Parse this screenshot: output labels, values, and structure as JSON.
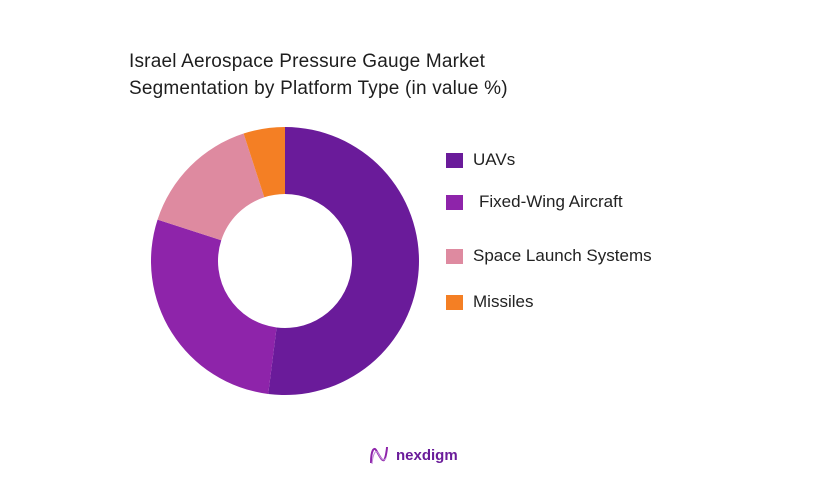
{
  "chart_data": {
    "type": "pie",
    "subtype": "donut",
    "title": "Israel Aerospace Pressure Gauge Market Segmentation by Platform Type (in value %)",
    "title_lines": [
      "Israel Aerospace Pressure Gauge Market",
      "Segmentation by Platform Type (in value %)"
    ],
    "categories": [
      "UAVs",
      "Fixed-Wing Aircraft",
      "Space Launch Systems",
      "Missiles"
    ],
    "values": [
      52,
      28,
      15,
      5
    ],
    "colors": [
      "#6a1b9a",
      "#8e24aa",
      "#de8aa0",
      "#f47f24"
    ],
    "legend_position": "right",
    "start_angle": 0,
    "direction": "clockwise"
  },
  "legend": {
    "items": [
      {
        "label": "UAVs",
        "color": "#6a1b9a"
      },
      {
        "label": "Fixed-Wing Aircraft",
        "color": "#8e24aa"
      },
      {
        "label": "Space Launch Systems",
        "color": "#de8aa0"
      },
      {
        "label": "Missiles",
        "color": "#f47f24"
      }
    ]
  },
  "branding": {
    "logo_text": "nexdigm",
    "logo_color": "#6a1b9a"
  }
}
